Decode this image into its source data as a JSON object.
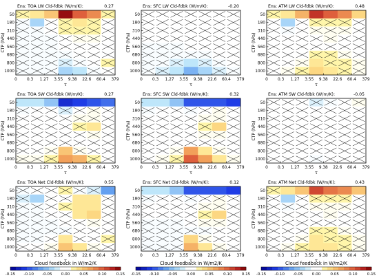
{
  "chart_data": {
    "type": "heatmap",
    "x_ticks": [
      "0",
      "0.3",
      "1.27",
      "3.55",
      "9.38",
      "22.6",
      "60.4",
      "379"
    ],
    "y_ticks": [
      "50",
      "180",
      "310",
      "440",
      "560",
      "680",
      "800",
      "1000"
    ],
    "ylabel": "CTP (hPa)",
    "xlabel": "τ",
    "colorbar": {
      "label": "Cloud feedback in W/m^2/K",
      "ticks": [
        "-0.15",
        "-0.10",
        "-0.05",
        "0.00",
        "0.05",
        "0.10",
        "0.15"
      ],
      "range": [
        -0.15,
        0.15
      ]
    },
    "panels": [
      {
        "title": "Ens: TOA LW Cld-fdbk (W/m^2/K):",
        "value": "0.27",
        "grid": [
          [
            0.02,
            0.03,
            0.05,
            0.14,
            0.1,
            0.08,
            0.02
          ],
          [
            -0.01,
            -0.04,
            0.0,
            0.02,
            0.03,
            0.02,
            0.0
          ],
          [
            -0.01,
            -0.01,
            0.0,
            0.02,
            0.02,
            0.02,
            0.0
          ],
          [
            -0.01,
            -0.01,
            -0.01,
            0.0,
            0.01,
            0.01,
            0.0
          ],
          [
            -0.01,
            -0.01,
            -0.01,
            0.0,
            0.0,
            0.0,
            0.0
          ],
          [
            -0.01,
            -0.01,
            -0.01,
            -0.01,
            0.0,
            0.0,
            0.0
          ],
          [
            -0.01,
            -0.01,
            -0.01,
            -0.02,
            -0.01,
            0.0,
            0.02
          ],
          [
            -0.01,
            -0.01,
            -0.01,
            -0.04,
            -0.03,
            -0.01,
            0.0
          ]
        ]
      },
      {
        "title": "Ens: SFC LW Cld-fdbk (W/m^2/K):",
        "value": "-0.20",
        "grid": [
          [
            0.0,
            0.0,
            0.0,
            0.0,
            0.0,
            0.0,
            0.0
          ],
          [
            0.0,
            0.0,
            0.0,
            0.0,
            0.0,
            0.0,
            0.0
          ],
          [
            0.0,
            0.0,
            0.0,
            0.0,
            0.0,
            0.0,
            0.0
          ],
          [
            0.0,
            0.0,
            0.0,
            0.0,
            0.0,
            0.0,
            0.0
          ],
          [
            -0.01,
            -0.01,
            -0.01,
            0.0,
            0.0,
            0.0,
            0.0
          ],
          [
            -0.01,
            -0.01,
            -0.01,
            -0.01,
            -0.01,
            0.0,
            0.0
          ],
          [
            -0.01,
            -0.01,
            -0.02,
            -0.03,
            -0.02,
            -0.01,
            0.0
          ],
          [
            -0.01,
            -0.02,
            -0.03,
            -0.06,
            -0.04,
            -0.02,
            -0.01
          ]
        ]
      },
      {
        "title": "Ens: ATM LW Cld-fdbk (W/m^2/K):",
        "value": "0.48",
        "grid": [
          [
            0.02,
            0.03,
            0.06,
            0.12,
            0.1,
            0.08,
            0.04
          ],
          [
            0.0,
            -0.04,
            0.0,
            0.02,
            0.02,
            0.02,
            0.0
          ],
          [
            0.0,
            -0.01,
            0.0,
            0.01,
            0.01,
            0.01,
            0.0
          ],
          [
            0.0,
            0.0,
            0.0,
            0.0,
            0.01,
            0.0,
            0.0
          ],
          [
            0.0,
            0.0,
            0.0,
            0.0,
            0.0,
            0.0,
            0.0
          ],
          [
            0.0,
            0.0,
            0.0,
            0.02,
            0.02,
            0.01,
            0.0
          ],
          [
            0.0,
            0.0,
            0.01,
            0.03,
            0.02,
            0.02,
            0.01
          ],
          [
            0.0,
            0.01,
            0.02,
            0.04,
            0.03,
            0.02,
            0.01
          ]
        ]
      },
      {
        "title": "Ens: TOA SW Cld-fdbk (W/m^2/K):",
        "value": "0.27",
        "grid": [
          [
            -0.03,
            -0.03,
            -0.05,
            -0.12,
            -0.11,
            -0.1,
            -0.09
          ],
          [
            -0.01,
            0.0,
            0.0,
            -0.02,
            0.0,
            0.01,
            0.0
          ],
          [
            0.0,
            0.0,
            0.0,
            0.0,
            0.01,
            0.01,
            0.0
          ],
          [
            0.0,
            0.0,
            0.0,
            0.0,
            0.02,
            0.03,
            0.0
          ],
          [
            0.0,
            0.0,
            0.0,
            0.0,
            0.0,
            0.01,
            0.0
          ],
          [
            0.0,
            0.0,
            0.0,
            0.0,
            0.0,
            0.0,
            0.0
          ],
          [
            0.0,
            0.0,
            0.01,
            0.05,
            0.01,
            0.0,
            0.0
          ],
          [
            0.01,
            0.01,
            0.02,
            0.07,
            0.06,
            0.02,
            0.0
          ]
        ]
      },
      {
        "title": "Ens: SFC SW Cld-fdbk (W/m^2/K):",
        "value": "0.32",
        "grid": [
          [
            -0.03,
            -0.03,
            -0.05,
            -0.1,
            -0.1,
            -0.1,
            -0.11
          ],
          [
            -0.01,
            0.0,
            0.0,
            -0.01,
            0.0,
            0.01,
            0.0
          ],
          [
            0.0,
            0.0,
            0.0,
            0.0,
            0.01,
            0.01,
            0.0
          ],
          [
            0.0,
            0.0,
            0.0,
            0.0,
            0.02,
            0.04,
            0.0
          ],
          [
            0.0,
            0.0,
            0.0,
            0.0,
            0.01,
            0.01,
            0.0
          ],
          [
            0.0,
            0.0,
            0.0,
            0.0,
            0.0,
            0.0,
            0.0
          ],
          [
            0.0,
            0.0,
            0.01,
            0.07,
            0.03,
            0.01,
            0.0
          ],
          [
            0.0,
            0.01,
            0.02,
            0.1,
            0.07,
            0.03,
            0.01
          ]
        ]
      },
      {
        "title": "Ens: ATM SW Cld-fdbk (W/m^2/K):",
        "value": "-0.05",
        "grid": [
          [
            0.0,
            0.0,
            0.0,
            -0.02,
            -0.01,
            0.0,
            0.01
          ],
          [
            0.0,
            0.0,
            0.0,
            0.0,
            0.0,
            0.0,
            0.0
          ],
          [
            0.0,
            0.0,
            0.0,
            0.0,
            0.0,
            0.0,
            0.0
          ],
          [
            0.0,
            0.0,
            0.0,
            0.0,
            0.0,
            0.0,
            0.0
          ],
          [
            0.0,
            0.0,
            0.0,
            0.0,
            0.0,
            0.0,
            0.0
          ],
          [
            0.0,
            0.0,
            0.0,
            0.0,
            0.0,
            0.0,
            0.0
          ],
          [
            0.0,
            0.0,
            0.0,
            0.0,
            0.0,
            0.0,
            0.0
          ],
          [
            0.0,
            0.0,
            0.0,
            -0.01,
            0.0,
            0.0,
            0.0
          ]
        ]
      },
      {
        "title": "Ens: TOA Net Cld-fdbk (W/m^2/K):",
        "value": "0.55",
        "grid": [
          [
            -0.01,
            0.0,
            0.0,
            0.02,
            -0.01,
            -0.02,
            -0.07
          ],
          [
            -0.02,
            -0.04,
            0.0,
            0.0,
            0.03,
            0.03,
            0.0
          ],
          [
            -0.01,
            -0.01,
            0.0,
            0.02,
            0.03,
            0.03,
            0.0
          ],
          [
            -0.01,
            -0.01,
            0.0,
            0.0,
            0.03,
            0.04,
            0.0
          ],
          [
            -0.01,
            -0.01,
            -0.01,
            0.0,
            0.0,
            0.01,
            0.0
          ],
          [
            -0.01,
            -0.01,
            -0.01,
            -0.01,
            0.0,
            0.0,
            0.0
          ],
          [
            -0.01,
            -0.01,
            0.0,
            0.03,
            0.0,
            0.0,
            0.02
          ],
          [
            0.0,
            0.0,
            0.01,
            0.05,
            0.03,
            0.01,
            0.0
          ]
        ]
      },
      {
        "title": "Ens: SFC Net Cld-fdbk (W/m^2/K):",
        "value": "0.12",
        "grid": [
          [
            -0.03,
            -0.03,
            -0.05,
            -0.1,
            -0.1,
            -0.1,
            -0.11
          ],
          [
            -0.01,
            0.0,
            0.0,
            -0.01,
            0.0,
            0.01,
            0.0
          ],
          [
            0.0,
            0.0,
            0.0,
            0.0,
            0.01,
            0.01,
            0.0
          ],
          [
            0.0,
            0.0,
            0.0,
            0.0,
            0.02,
            0.04,
            0.0
          ],
          [
            -0.01,
            -0.01,
            -0.01,
            0.0,
            0.01,
            0.01,
            0.0
          ],
          [
            -0.01,
            -0.01,
            -0.01,
            -0.01,
            -0.01,
            0.0,
            0.0
          ],
          [
            -0.01,
            -0.01,
            -0.01,
            0.04,
            0.01,
            0.0,
            0.0
          ],
          [
            -0.01,
            -0.01,
            -0.01,
            0.06,
            0.03,
            0.01,
            0.0
          ]
        ]
      },
      {
        "title": "Ens: ATM Net Cld-fdbk (W/m^2/K):",
        "value": "0.43",
        "grid": [
          [
            0.02,
            0.03,
            0.05,
            0.11,
            0.09,
            0.08,
            0.05
          ],
          [
            0.0,
            -0.04,
            0.0,
            0.02,
            0.02,
            0.02,
            0.0
          ],
          [
            0.0,
            -0.01,
            0.0,
            0.01,
            0.01,
            0.01,
            0.0
          ],
          [
            0.0,
            0.0,
            0.0,
            0.0,
            0.01,
            0.0,
            0.0
          ],
          [
            0.0,
            0.0,
            0.0,
            0.0,
            0.0,
            0.0,
            0.0
          ],
          [
            0.0,
            0.0,
            0.0,
            0.02,
            0.02,
            0.01,
            0.0
          ],
          [
            0.0,
            0.0,
            0.01,
            0.03,
            0.02,
            0.02,
            0.01
          ],
          [
            0.0,
            0.01,
            0.02,
            0.03,
            0.03,
            0.02,
            0.01
          ]
        ]
      }
    ]
  }
}
